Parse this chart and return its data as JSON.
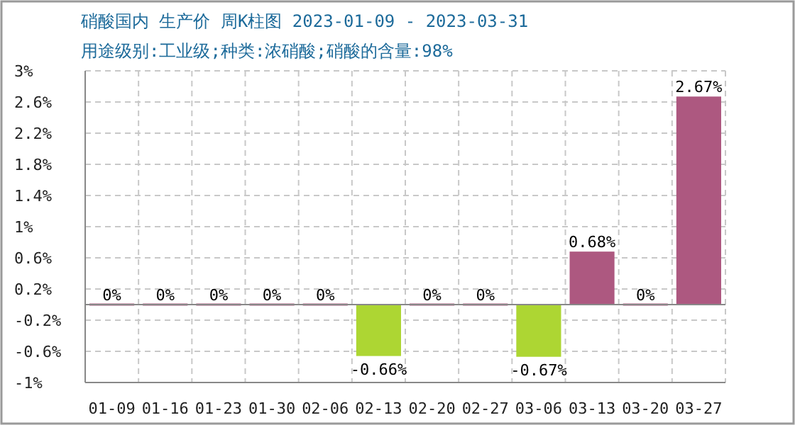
{
  "chart_data": {
    "type": "bar",
    "title": "硝酸国内 生产价 周K柱图 2023-01-09 - 2023-03-31",
    "subtitle": "用途级别:工业级;种类:浓硝酸;硝酸的含量:98%",
    "categories": [
      "01-09",
      "01-16",
      "01-23",
      "01-30",
      "02-06",
      "02-13",
      "02-20",
      "02-27",
      "03-06",
      "03-13",
      "03-20",
      "03-27"
    ],
    "values": [
      0,
      0,
      0,
      0,
      0,
      -0.66,
      0,
      0,
      -0.67,
      0.68,
      0,
      2.67
    ],
    "colors": [
      "#ad5880",
      "#ad5880",
      "#ad5880",
      "#ad5880",
      "#ad5880",
      "#add633",
      "#ad5880",
      "#ad5880",
      "#add633",
      "#ad5880",
      "#ad5880",
      "#ad5880"
    ],
    "value_labels": [
      "0%",
      "0%",
      "0%",
      "0%",
      "0%",
      "-0.66%",
      "0%",
      "0%",
      "-0.67%",
      "0.68%",
      "0%",
      "2.67%"
    ],
    "ylim": [
      -1,
      3
    ],
    "yticks": [
      {
        "value": -1,
        "label": "-1%"
      },
      {
        "value": -0.6,
        "label": "-0.6%"
      },
      {
        "value": -0.2,
        "label": "-0.2%"
      },
      {
        "value": 0.2,
        "label": "0.2%"
      },
      {
        "value": 0.6,
        "label": "0.6%"
      },
      {
        "value": 1,
        "label": "1%"
      },
      {
        "value": 1.4,
        "label": "1.4%"
      },
      {
        "value": 1.8,
        "label": "1.8%"
      },
      {
        "value": 2.2,
        "label": "2.2%"
      },
      {
        "value": 2.6,
        "label": "2.6%"
      },
      {
        "value": 3,
        "label": "3%"
      }
    ],
    "grid": true
  }
}
